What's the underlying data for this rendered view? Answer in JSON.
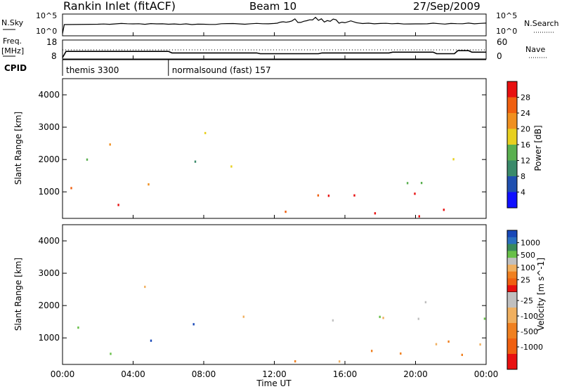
{
  "header": {
    "station": "Rankin Inlet (fitACF)",
    "beam": "Beam 10",
    "date": "27/Sep/2009"
  },
  "noise_panel": {
    "left_label": "N.Sky",
    "left_ticks": [
      "10^5",
      "10^0"
    ],
    "right_label": "N.Search",
    "right_ticks": [
      "10^5",
      "10^0"
    ]
  },
  "freq_panel": {
    "left_label_line1": "Freq.",
    "left_label_line2": "[MHz]",
    "left_ticks": [
      "18",
      "8"
    ],
    "right_label": "Nave",
    "right_ticks": [
      "60",
      "0"
    ]
  },
  "cpid_panel": {
    "label": "CPID",
    "programs": [
      {
        "name": "themis 3300",
        "start_hour": 0
      },
      {
        "name": "normalsound (fast) 157",
        "start_hour": 6
      }
    ]
  },
  "x_axis": {
    "label": "Time UT",
    "ticks": [
      "00:00",
      "04:00",
      "08:00",
      "12:00",
      "16:00",
      "20:00",
      "00:00"
    ]
  },
  "power_panel": {
    "ylabel": "Slant Range [km]",
    "yticks": [
      "4000",
      "3000",
      "2000",
      "1000"
    ],
    "colorbar_label": "Power [dB]",
    "colorbar_ticks": [
      "28",
      "24",
      "20",
      "16",
      "12",
      "8",
      "4"
    ],
    "colors": [
      "#1010ff",
      "#2050b0",
      "#3a8a6a",
      "#5ab050",
      "#e8d020",
      "#f09020",
      "#f06010",
      "#e81010"
    ]
  },
  "velocity_panel": {
    "ylabel": "Slant Range [km]",
    "yticks": [
      "4000",
      "3000",
      "2000",
      "1000"
    ],
    "colorbar_label": "Velocity [m s^-1]",
    "colorbar_ticks": [
      "1000",
      "500",
      "100",
      "25",
      "-25",
      "-100",
      "-500",
      "-1000"
    ],
    "colors": [
      "#1848b8",
      "#2a70c0",
      "#3a8a5a",
      "#68c048",
      "#c0c0c0",
      "#f0b060",
      "#f08020",
      "#f06010",
      "#e81010"
    ]
  },
  "chart_data": [
    {
      "type": "line",
      "title": "N.Sky / N.Search",
      "x_unit": "hours UT",
      "xlim": [
        0,
        24
      ],
      "series": [
        {
          "name": "N.Sky",
          "x": [
            0,
            0.1,
            2,
            4,
            6,
            8,
            10,
            12,
            13,
            14,
            15,
            16,
            18,
            20,
            22,
            24
          ],
          "y": [
            0,
            2.5,
            2.6,
            2.7,
            2.6,
            2.6,
            2.7,
            2.8,
            3.5,
            3.8,
            3.6,
            3.0,
            2.8,
            2.7,
            2.8,
            2.9
          ]
        }
      ]
    },
    {
      "type": "line",
      "title": "Freq. [MHz] / Nave",
      "xlim": [
        0,
        24
      ],
      "series": [
        {
          "name": "Freq",
          "x": [
            0,
            0.2,
            6,
            6.2,
            11,
            11.2,
            14.5,
            14.7,
            18.5,
            18.7,
            21,
            21.2,
            22.2,
            22.4,
            23,
            23.2,
            24
          ],
          "y": [
            8,
            12,
            12,
            11,
            11,
            10.5,
            10.5,
            11,
            11,
            11.5,
            11.5,
            10.5,
            10.5,
            12.5,
            12.5,
            11.5,
            11.5
          ]
        },
        {
          "name": "Nave",
          "x": [
            0,
            24
          ],
          "y": [
            30,
            30
          ]
        }
      ]
    },
    {
      "type": "heatmap",
      "title": "Power [dB]",
      "x_unit": "hours UT",
      "xlim": [
        0,
        24
      ],
      "ylim": [
        180,
        4500
      ],
      "ylabel": "Slant Range [km]",
      "zlim": [
        0,
        30
      ],
      "regions": [
        {
          "t0": 0.0,
          "t1": 1.6,
          "r0": 900,
          "r1": 1500,
          "z": 26
        },
        {
          "t0": 0.3,
          "t1": 1.6,
          "r0": 1600,
          "r1": 2500,
          "z": 12
        },
        {
          "t0": 1.0,
          "t1": 3.5,
          "r0": 200,
          "r1": 900,
          "z": 28
        },
        {
          "t0": 2.6,
          "t1": 4.8,
          "r0": 2000,
          "r1": 2900,
          "z": 22
        },
        {
          "t0": 3.6,
          "t1": 6.0,
          "r0": 800,
          "r1": 1500,
          "z": 24
        },
        {
          "t0": 6.5,
          "t1": 8.5,
          "r0": 1300,
          "r1": 2000,
          "z": 12
        },
        {
          "t0": 7.0,
          "t1": 9.0,
          "r0": 2400,
          "r1": 2900,
          "z": 14
        },
        {
          "t0": 9.5,
          "t1": 11.0,
          "r0": 1500,
          "r1": 2000,
          "z": 16
        },
        {
          "t0": 10.5,
          "t1": 12.0,
          "r0": 2600,
          "r1": 2900,
          "z": 14
        },
        {
          "t0": 11.5,
          "t1": 24.0,
          "r0": 200,
          "r1": 1100,
          "z": 26
        },
        {
          "t0": 17.5,
          "t1": 24.0,
          "r0": 1300,
          "r1": 2200,
          "z": 14
        },
        {
          "t0": 18.0,
          "t1": 18.8,
          "r0": 2300,
          "r1": 2700,
          "z": 16
        },
        {
          "t0": 22.0,
          "t1": 22.6,
          "r0": 2000,
          "r1": 2600,
          "z": 24
        }
      ]
    },
    {
      "type": "heatmap",
      "title": "Velocity [m s^-1]",
      "x_unit": "hours UT",
      "xlim": [
        0,
        24
      ],
      "ylim": [
        180,
        4500
      ],
      "ylabel": "Slant Range [km]",
      "zlim": [
        -1000,
        1000
      ],
      "regions": [
        {
          "t0": 0.0,
          "t1": 1.6,
          "r0": 900,
          "r1": 1600,
          "z": 100
        },
        {
          "t0": 1.0,
          "t1": 3.5,
          "r0": 200,
          "r1": 900,
          "z": 100
        },
        {
          "t0": 2.6,
          "t1": 4.8,
          "r0": 2000,
          "r1": 2900,
          "z": 0
        },
        {
          "t0": 3.6,
          "t1": 6.0,
          "r0": 800,
          "r1": 1500,
          "z": 900
        },
        {
          "t0": 6.5,
          "t1": 8.5,
          "r0": 1200,
          "r1": 2000,
          "z": 900
        },
        {
          "t0": 9.5,
          "t1": 11.5,
          "r0": 1500,
          "r1": 2000,
          "z": 0
        },
        {
          "t0": 11.0,
          "t1": 12.0,
          "r0": 1400,
          "r1": 2000,
          "z": -200
        },
        {
          "t0": 11.5,
          "t1": 24.0,
          "r0": 200,
          "r1": 1100,
          "z": -300
        },
        {
          "t0": 13.5,
          "t1": 18.5,
          "r0": 1400,
          "r1": 2200,
          "z": 25
        },
        {
          "t0": 19.0,
          "t1": 24.0,
          "r0": 1400,
          "r1": 2300,
          "z": 0
        }
      ]
    }
  ]
}
